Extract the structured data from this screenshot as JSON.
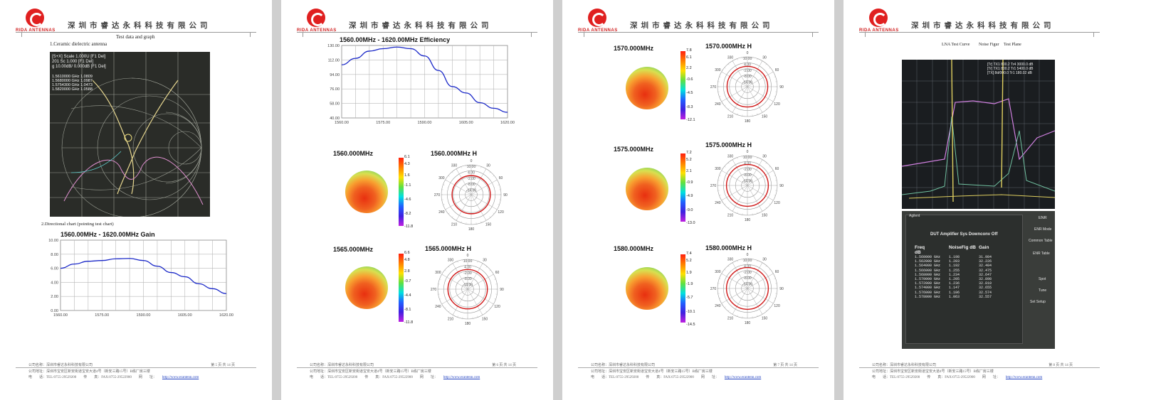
{
  "header": {
    "company": "深圳市睿达永科科技有限公司",
    "brand": "RIDA ANTENNAS"
  },
  "footer": {
    "company_name": "公司名称：深圳市睿达永科科技有限公司",
    "address": "公司地址：深圳市宝安区新安街道宝安大道4号（新安三路15号）B栋厂房三楼",
    "tel": "电　　话：TEL:0755-29529200　　传　　真：FAX:0755-29522900　　网　　址：",
    "url": "http://www.ecantenn.com"
  },
  "pages": [
    {
      "page_label": "第 5 页 共 14 页",
      "title": "Test data and graph",
      "section1": "1.Ceramic dielectric antenna",
      "section2": "2.Directional chart (pointing test chart)"
    },
    {
      "page_label": "第 6 页 共 14 页"
    },
    {
      "page_label": "第 7 页 共 14 页"
    },
    {
      "page_label": "第 8 页 共 14 页",
      "lna_curve": "LNA Test Curve",
      "noise_figure": "Noise Figur",
      "test_plane": "Test Plane"
    }
  ],
  "vna": {
    "l1": "[S+X] Scale 1.000U [F1 Del]",
    "l2": "201 Sc 1.000 [F1 Del]",
    "l3": "g 10.00dB/ 0.000dB [F1 Del]",
    "markers": [
      "1.5610000 GHz 1.0809",
      "1.5680000 GHz 1.0987",
      "1.5754300 GHz 1.0473",
      "1.5820000 GHz 1.0588"
    ]
  },
  "chart_data": [
    {
      "type": "line",
      "title": "1560.00MHz - 1620.00MHz Gain",
      "x": [
        1560,
        1565,
        1570,
        1575,
        1580,
        1585,
        1590,
        1595,
        1600,
        1605,
        1610,
        1615,
        1620
      ],
      "values": [
        6.0,
        6.6,
        7.0,
        7.1,
        7.35,
        7.4,
        7.1,
        6.3,
        5.4,
        4.8,
        3.8,
        3.1,
        2.4
      ],
      "yticks": [
        "0.00",
        "2.00",
        "4.00",
        "6.00",
        "8.00",
        "10.00"
      ],
      "xticks": [
        "1560.00",
        "1575.00",
        "1590.00",
        "1605.00",
        "1620.00"
      ],
      "ylim": [
        0,
        10
      ]
    },
    {
      "type": "line",
      "title": "1560.00MHz - 1620.00MHz Efficiency",
      "x": [
        1560,
        1565,
        1570,
        1575,
        1580,
        1585,
        1590,
        1595,
        1600,
        1605,
        1610,
        1615,
        1620
      ],
      "values": [
        106,
        114,
        123,
        126,
        128,
        126,
        117,
        99,
        79,
        71,
        59,
        52,
        47
      ],
      "yticks": [
        "40.00",
        "58.00",
        "76.00",
        "94.00",
        "112.00",
        "130.00"
      ],
      "xticks": [
        "1560.00",
        "1575.00",
        "1590.00",
        "1605.00",
        "1620.00"
      ],
      "ylim": [
        40,
        130
      ]
    }
  ],
  "patterns": [
    {
      "freq": "1560.000MHz",
      "label": "1560.000MHz  H",
      "scale": [
        "6.1",
        "4.3",
        "1.6",
        "-1.1",
        "-4.6",
        "-8.2",
        "-11.8"
      ]
    },
    {
      "freq": "1565.000MHz",
      "label": "1565.000MHz  H",
      "scale": [
        "6.6",
        "4.8",
        "2.8",
        "-0.7",
        "-4.4",
        "-8.1",
        "-11.8"
      ]
    },
    {
      "freq": "1570.000MHz",
      "label": "1570.000MHz  H",
      "scale": [
        "7.8",
        "6.1",
        "2.2",
        "-0.6",
        "-4.5",
        "-8.3",
        "-12.1"
      ]
    },
    {
      "freq": "1575.000MHz",
      "label": "1575.000MHz  H",
      "scale": [
        "7.2",
        "5.2",
        "2.1",
        "-0.9",
        "-4.9",
        "-9.0",
        "-13.0"
      ]
    },
    {
      "freq": "1580.000MHz",
      "label": "1580.000MHz  H",
      "scale": [
        "7.4",
        "5.2",
        "1.9",
        "-1.9",
        "-5.7",
        "-10.1",
        "-14.5"
      ]
    }
  ],
  "polar": {
    "angles": [
      "0",
      "30",
      "60",
      "90",
      "120",
      "150",
      "180",
      "210",
      "240",
      "270",
      "300",
      "330"
    ],
    "rings": [
      "10.00",
      "4.00",
      "-2.00",
      "-8.00",
      "-14.00"
    ]
  },
  "nf_table": {
    "btn_top": "ENR",
    "side": [
      "ENR Mode",
      "Common Table",
      "ENR Table",
      "",
      "Spot",
      "Tune",
      "Set Setup"
    ],
    "headers": [
      "Freq",
      "NoiseFig dB",
      "Gain dB"
    ],
    "rows": [
      [
        "1.560000 GHz",
        "1.198",
        "31.984"
      ],
      [
        "1.562000 GHz",
        "1.203",
        "32.226"
      ],
      [
        "1.564000 GHz",
        "1.192",
        "32.404"
      ],
      [
        "1.566000 GHz",
        "1.255",
        "32.475"
      ],
      [
        "1.568000 GHz",
        "1.234",
        "32.647"
      ],
      [
        "1.570000 GHz",
        "1.205",
        "32.898"
      ],
      [
        "1.572000 GHz",
        "1.236",
        "32.810"
      ],
      [
        "1.574000 GHz",
        "1.147",
        "32.655"
      ],
      [
        "1.576000 GHz",
        "1.106",
        "32.574"
      ],
      [
        "1.578000 GHz",
        "1.063",
        "32.557"
      ]
    ],
    "top": "DUT Amplifier    Sys Downconv Off",
    "agilent": "Agilent"
  }
}
